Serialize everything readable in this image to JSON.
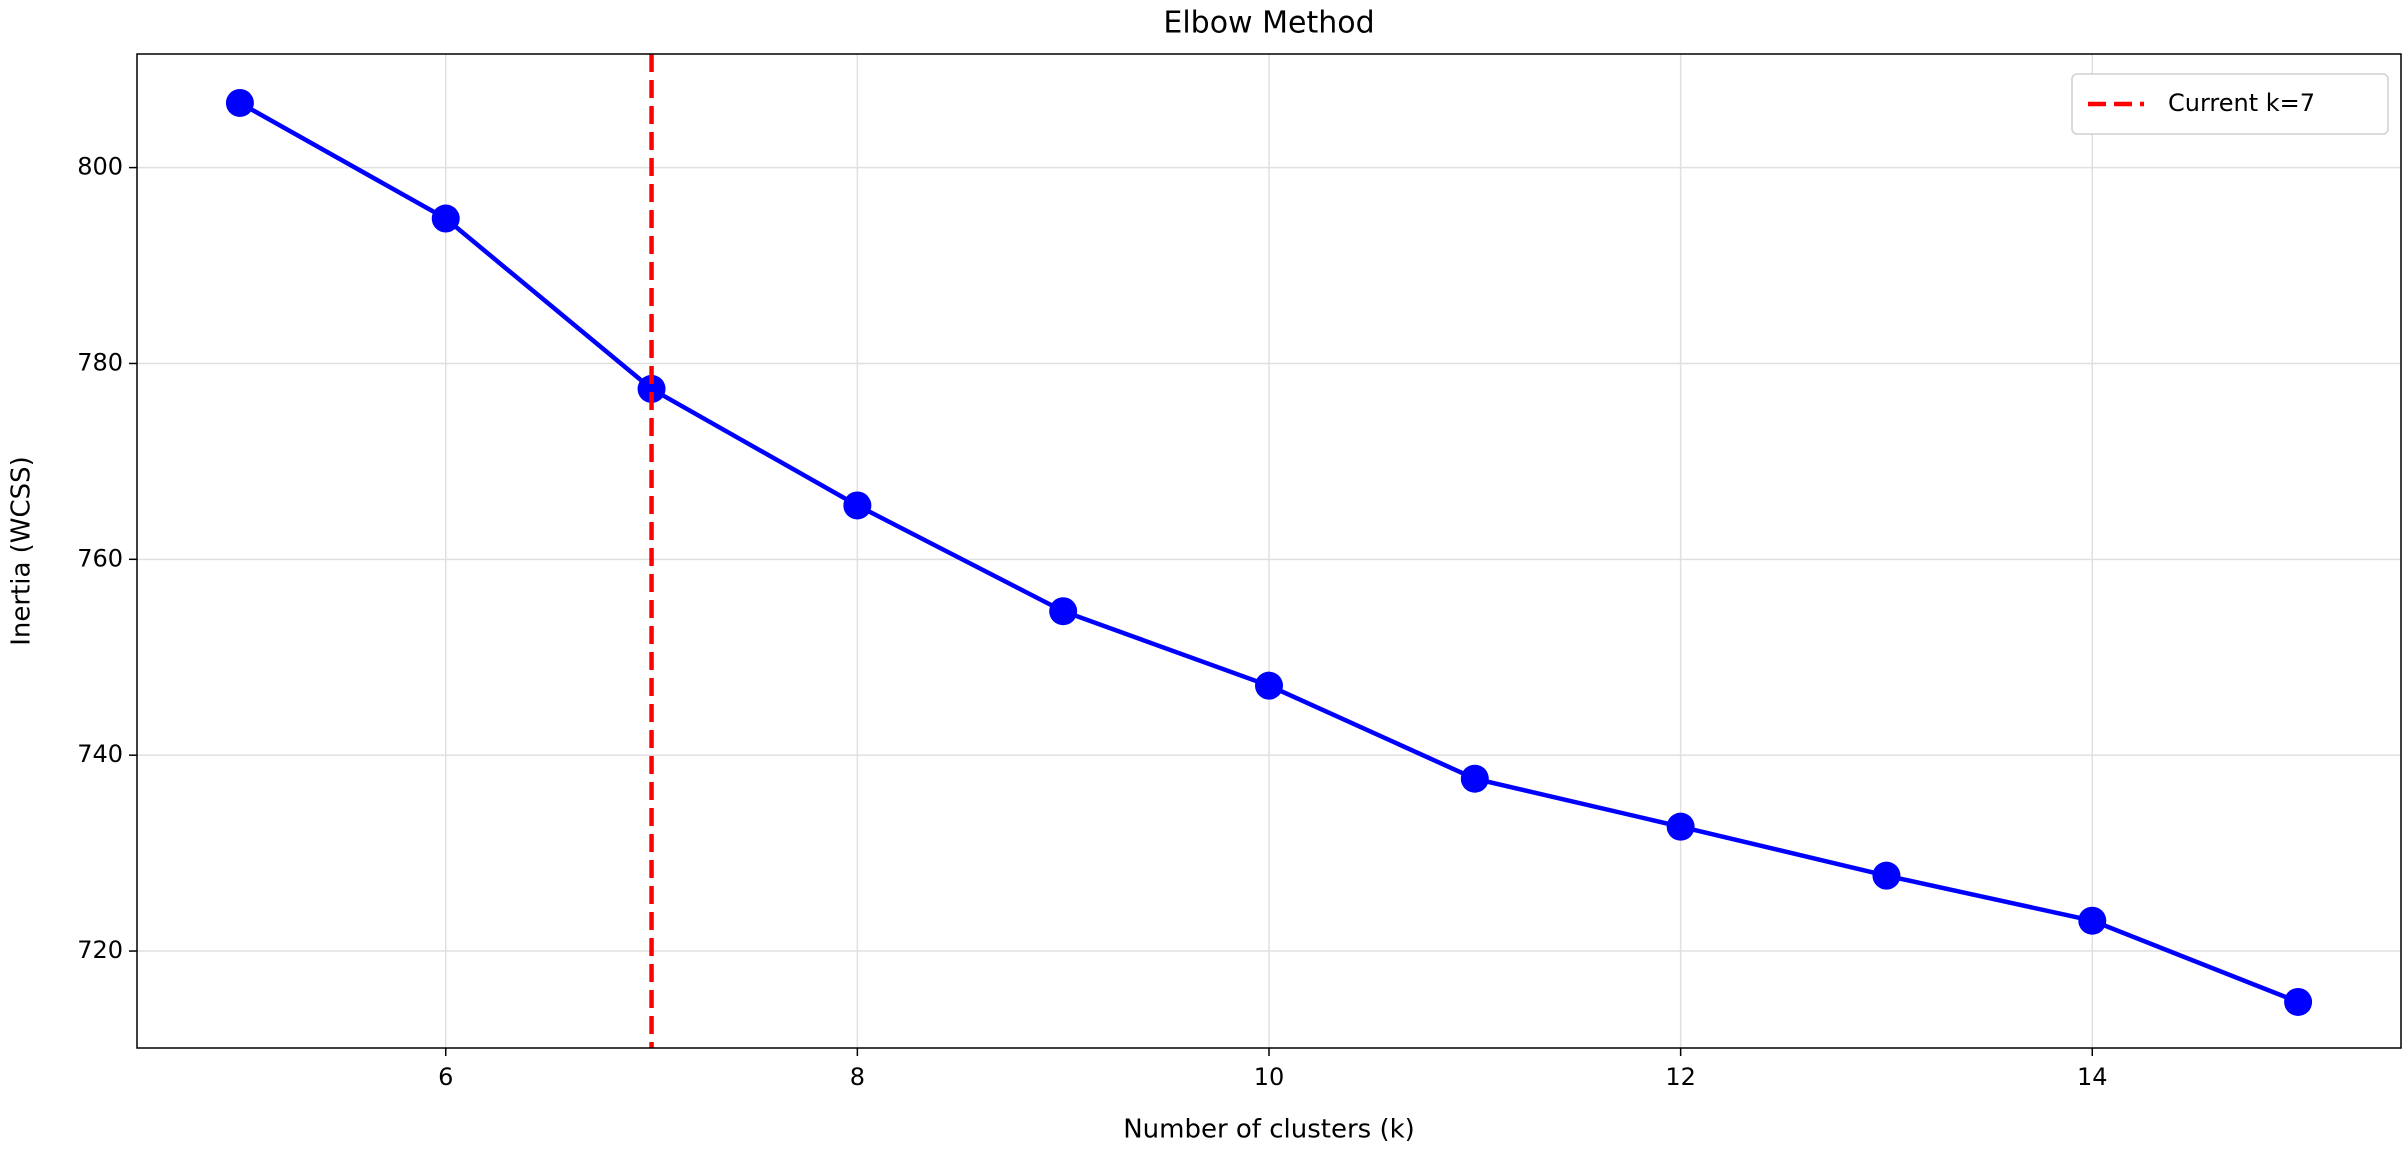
{
  "chart_data": {
    "type": "line",
    "title": "Elbow Method",
    "x_label": "Number of clusters (k)",
    "y_label": "Inertia (WCSS)",
    "x": [
      5,
      6,
      7,
      8,
      9,
      10,
      11,
      12,
      13,
      14,
      15
    ],
    "series": [
      {
        "color": "#0000ff",
        "values": [
          806.6,
          794.8,
          777.4,
          765.5,
          754.7,
          747.1,
          737.6,
          732.7,
          727.7,
          723.1,
          714.8
        ]
      }
    ],
    "xlim": [
      4.5,
      15.5
    ],
    "xticks": [
      6,
      8,
      10,
      12,
      14
    ],
    "ylim": [
      710.1,
      811.6
    ],
    "yticks": [
      720,
      740,
      760,
      780,
      800
    ],
    "grid": true,
    "legend": "upper right",
    "vline": {
      "x": 7,
      "label": "Current k=7",
      "color": "#ff0000"
    }
  }
}
